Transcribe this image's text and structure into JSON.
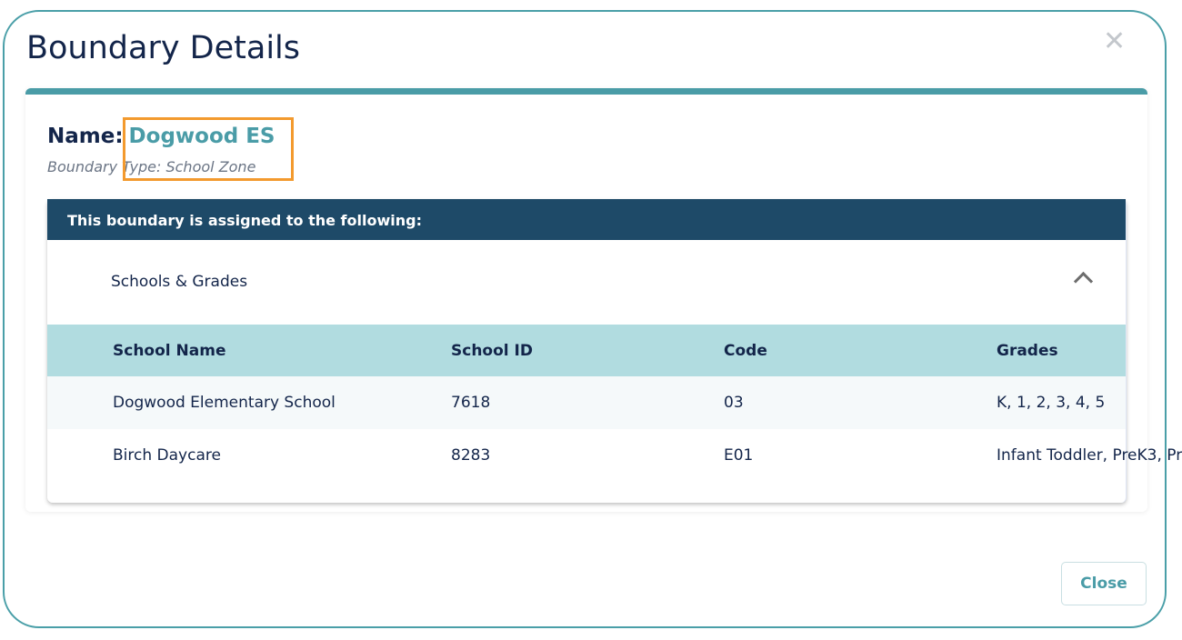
{
  "dialog": {
    "title": "Boundary Details",
    "close_icon": "close-x-icon",
    "close_button": "Close"
  },
  "boundary": {
    "name_label": "Name:",
    "name_value": "Dogwood ES",
    "type_text": "Boundary Type: School Zone"
  },
  "assignments": {
    "header": "This boundary is assigned to the following:",
    "section_title": "Schools & Grades",
    "section_icon": "chevron-up-icon",
    "columns": [
      "School Name",
      "School ID",
      "Code",
      "Grades"
    ],
    "rows": [
      [
        "Dogwood Elementary School",
        "7618",
        "03",
        "K, 1, 2, 3, 4, 5"
      ],
      [
        "Birch Daycare",
        "8283",
        "E01",
        "Infant Toddler, PreK3, Pr"
      ]
    ]
  },
  "colors": {
    "accent": "#4a9ca7",
    "header_dark": "#1e4a68",
    "table_header": "#b1dce0",
    "highlight": "#f39a2e"
  }
}
